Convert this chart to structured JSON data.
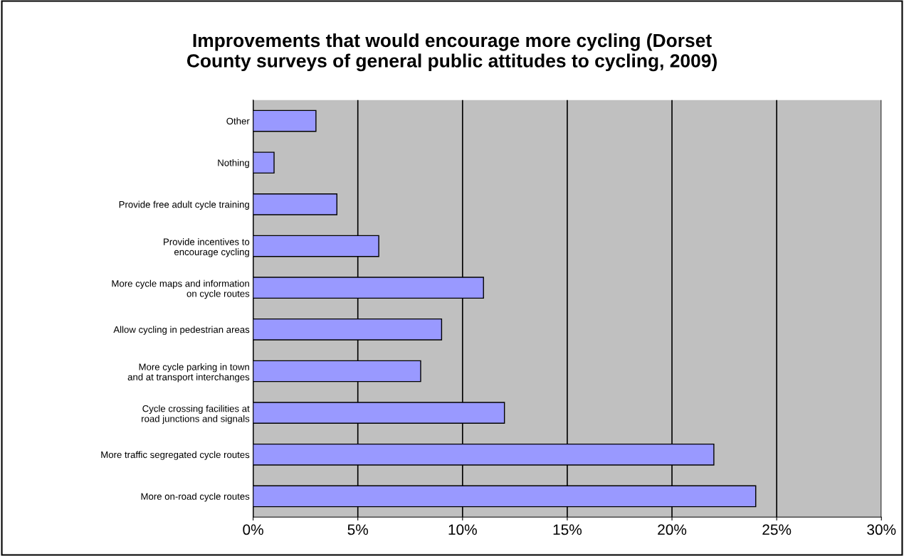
{
  "chart_data": {
    "type": "bar",
    "orientation": "horizontal",
    "title": "Improvements that would encourage more cycling (Dorset\nCounty surveys of general public attitudes to cycling, 2009)",
    "categories": [
      "Other",
      "Nothing",
      "Provide free adult cycle training",
      "Provide incentives to\nencourage cycling",
      "More cycle maps and information\non cycle routes",
      "Allow cycling in pedestrian areas",
      "More cycle parking in town\nand at transport interchanges",
      "Cycle crossing facilities at\nroad junctions and signals",
      "More traffic segregated cycle routes",
      "More on-road cycle routes"
    ],
    "values": [
      3,
      1,
      4,
      6,
      11,
      9,
      8,
      12,
      22,
      24
    ],
    "color": "#9999ff",
    "xlim": [
      0,
      30
    ],
    "xticks": [
      {
        "value": 0,
        "label": "0%"
      },
      {
        "value": 5,
        "label": "5%"
      },
      {
        "value": 10,
        "label": "10%"
      },
      {
        "value": 15,
        "label": "15%"
      },
      {
        "value": 20,
        "label": "20%"
      },
      {
        "value": 25,
        "label": "25%"
      },
      {
        "value": 30,
        "label": "30%"
      }
    ],
    "grid": "x",
    "legend": false
  }
}
